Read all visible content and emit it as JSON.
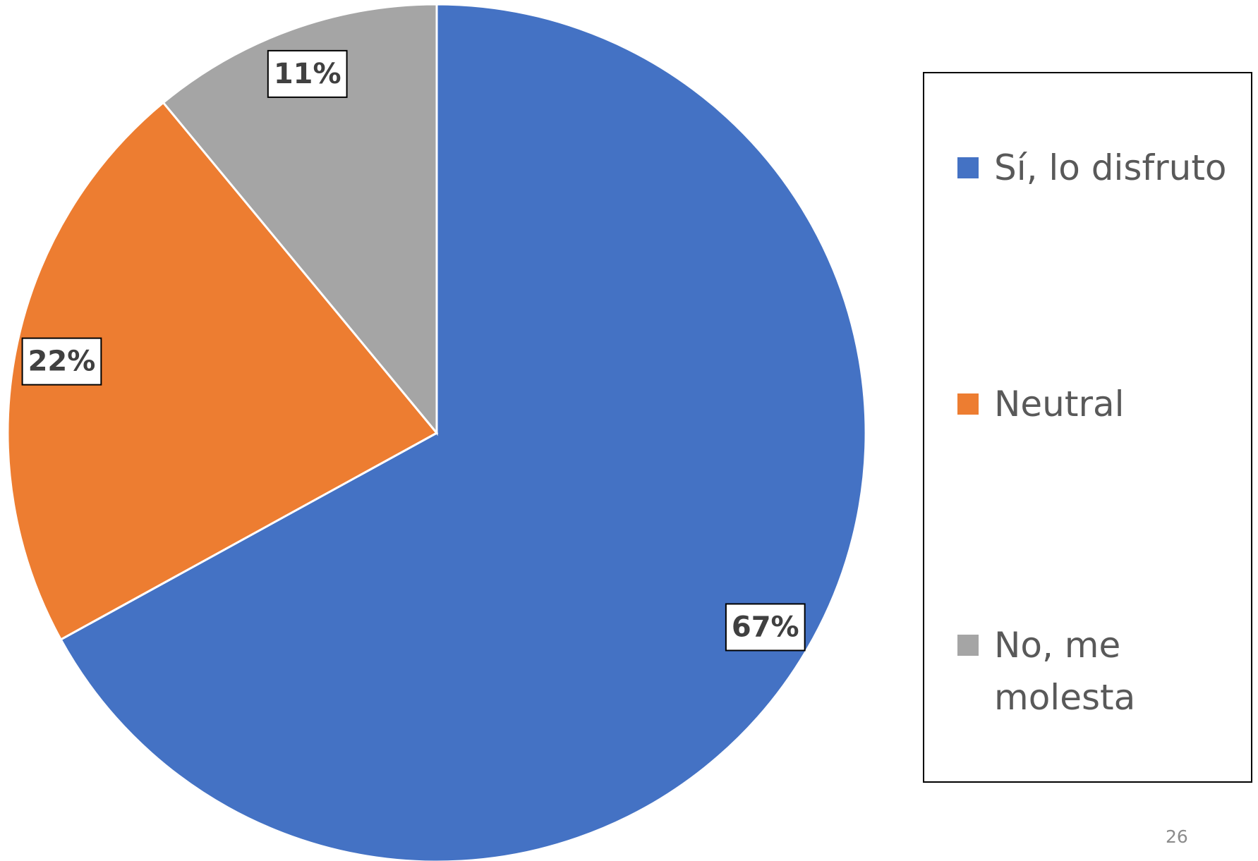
{
  "chart_data": {
    "type": "pie",
    "categories": [
      "Sí, lo disfruto",
      "Neutral",
      "No, me molesta"
    ],
    "values": [
      67,
      22,
      11
    ],
    "value_labels": [
      "67%",
      "22%",
      "11%"
    ],
    "colors": [
      "#4472c4",
      "#ed7d31",
      "#a5a5a5"
    ],
    "legend": "right"
  },
  "page_number": "26"
}
